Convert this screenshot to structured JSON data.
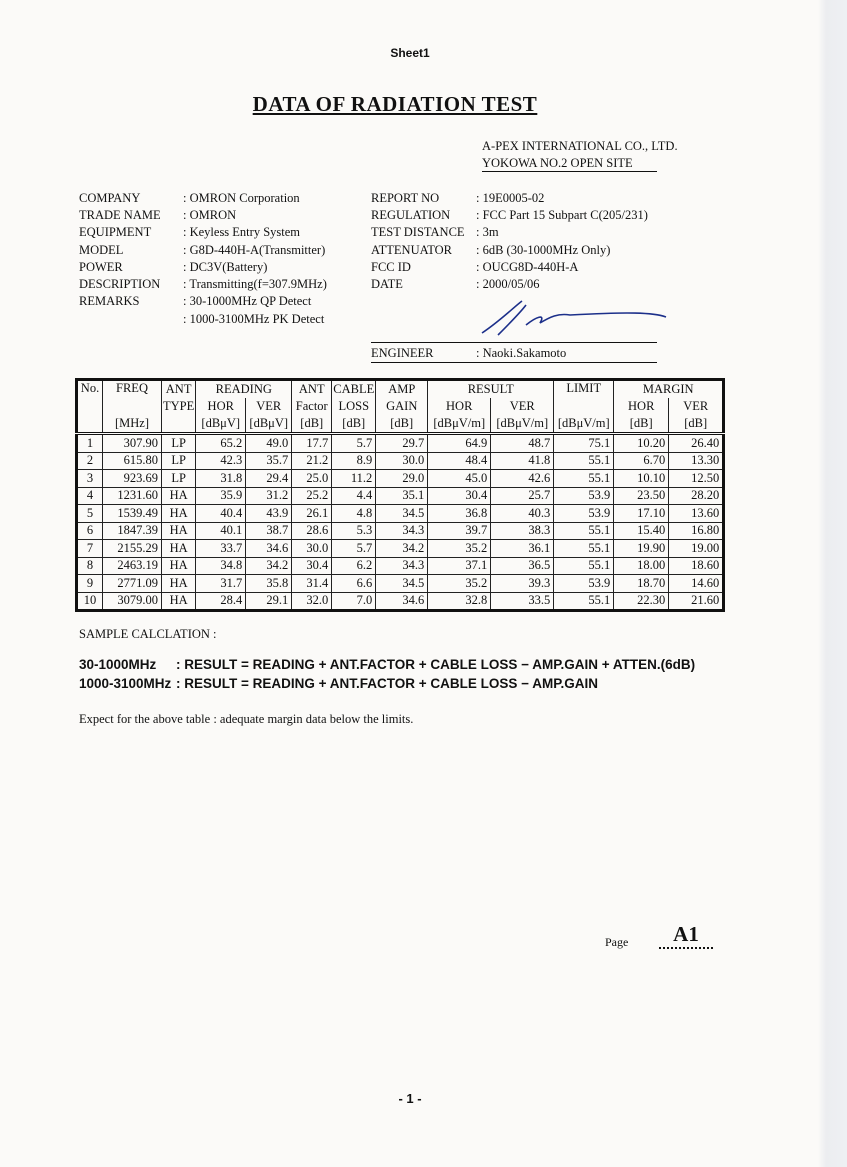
{
  "header": {
    "sheet": "Sheet1",
    "title": "DATA OF RADIATION TEST",
    "company": "A-PEX INTERNATIONAL CO., LTD.",
    "site": "YOKOWA NO.2 OPEN SITE"
  },
  "info": {
    "left": [
      {
        "label": "COMPANY",
        "value": ": OMRON Corporation"
      },
      {
        "label": "TRADE NAME",
        "value": ": OMRON"
      },
      {
        "label": "EQUIPMENT",
        "value": ": Keyless Entry System"
      },
      {
        "label": "MODEL",
        "value": ": G8D-440H-A(Transmitter)"
      },
      {
        "label": "POWER",
        "value": ": DC3V(Battery)"
      },
      {
        "label": "DESCRIPTION",
        "value": ": Transmitting(f=307.9MHz)"
      },
      {
        "label": "REMARKS",
        "value": ": 30-1000MHz QP Detect"
      }
    ],
    "remarks_cont": ": 1000-3100MHz PK Detect",
    "right": [
      {
        "label": "REPORT NO",
        "value": ": 19E0005-02"
      },
      {
        "label": "REGULATION",
        "value": ": FCC Part 15 Subpart C(205/231)"
      },
      {
        "label": "TEST DISTANCE",
        "value": ": 3m"
      },
      {
        "label": "ATTENUATOR",
        "value": ": 6dB (30-1000MHz Only)"
      },
      {
        "label": "FCC ID",
        "value": ": OUCG8D-440H-A"
      },
      {
        "label": "DATE",
        "value": ": 2000/05/06"
      }
    ],
    "engineer": {
      "label": "ENGINEER",
      "value": ": Naoki.Sakamoto"
    }
  },
  "table": {
    "head": [
      [
        "No.",
        "FREQ",
        "ANT",
        "READING",
        "ANT",
        "CABLE",
        "AMP",
        "RESULT",
        "LIMIT",
        "MARGIN"
      ],
      [
        "TYPE",
        "HOR",
        "VER",
        "Factor",
        "LOSS",
        "GAIN",
        "HOR",
        "VER",
        "HOR",
        "VER"
      ],
      [
        "[MHz]",
        "[dBμV]",
        "[dBμV]",
        "[dB]",
        "[dB]",
        "[dB]",
        "[dBμV/m]",
        "[dBμV/m]",
        "[dBμV/m]",
        "[dB]",
        "[dB]"
      ]
    ],
    "rows": [
      [
        "1",
        "307.90",
        "LP",
        "65.2",
        "49.0",
        "17.7",
        "5.7",
        "29.7",
        "64.9",
        "48.7",
        "75.1",
        "10.20",
        "26.40"
      ],
      [
        "2",
        "615.80",
        "LP",
        "42.3",
        "35.7",
        "21.2",
        "8.9",
        "30.0",
        "48.4",
        "41.8",
        "55.1",
        "6.70",
        "13.30"
      ],
      [
        "3",
        "923.69",
        "LP",
        "31.8",
        "29.4",
        "25.0",
        "11.2",
        "29.0",
        "45.0",
        "42.6",
        "55.1",
        "10.10",
        "12.50"
      ],
      [
        "4",
        "1231.60",
        "HA",
        "35.9",
        "31.2",
        "25.2",
        "4.4",
        "35.1",
        "30.4",
        "25.7",
        "53.9",
        "23.50",
        "28.20"
      ],
      [
        "5",
        "1539.49",
        "HA",
        "40.4",
        "43.9",
        "26.1",
        "4.8",
        "34.5",
        "36.8",
        "40.3",
        "53.9",
        "17.10",
        "13.60"
      ],
      [
        "6",
        "1847.39",
        "HA",
        "40.1",
        "38.7",
        "28.6",
        "5.3",
        "34.3",
        "39.7",
        "38.3",
        "55.1",
        "15.40",
        "16.80"
      ],
      [
        "7",
        "2155.29",
        "HA",
        "33.7",
        "34.6",
        "30.0",
        "5.7",
        "34.2",
        "35.2",
        "36.1",
        "55.1",
        "19.90",
        "19.00"
      ],
      [
        "8",
        "2463.19",
        "HA",
        "34.8",
        "34.2",
        "30.4",
        "6.2",
        "34.3",
        "37.1",
        "36.5",
        "55.1",
        "18.00",
        "18.60"
      ],
      [
        "9",
        "2771.09",
        "HA",
        "31.7",
        "35.8",
        "31.4",
        "6.6",
        "34.5",
        "35.2",
        "39.3",
        "53.9",
        "18.70",
        "14.60"
      ],
      [
        "10",
        "3079.00",
        "HA",
        "28.4",
        "29.1",
        "32.0",
        "7.0",
        "34.6",
        "32.8",
        "33.5",
        "55.1",
        "22.30",
        "21.60"
      ]
    ]
  },
  "calc": {
    "title": "SAMPLE CALCLATION :",
    "lines": [
      {
        "range": "30-1000MHz",
        "formula": ": RESULT = READING + ANT.FACTOR + CABLE LOSS − AMP.GAIN + ATTEN.(6dB)"
      },
      {
        "range": "1000-3100MHz",
        "formula": ": RESULT = READING + ANT.FACTOR + CABLE LOSS − AMP.GAIN"
      }
    ]
  },
  "note": "Expect for the above table : adequate margin data below the limits.",
  "footer": {
    "page_label": "Page",
    "page_id": "A1",
    "page_number": "- 1 -"
  }
}
